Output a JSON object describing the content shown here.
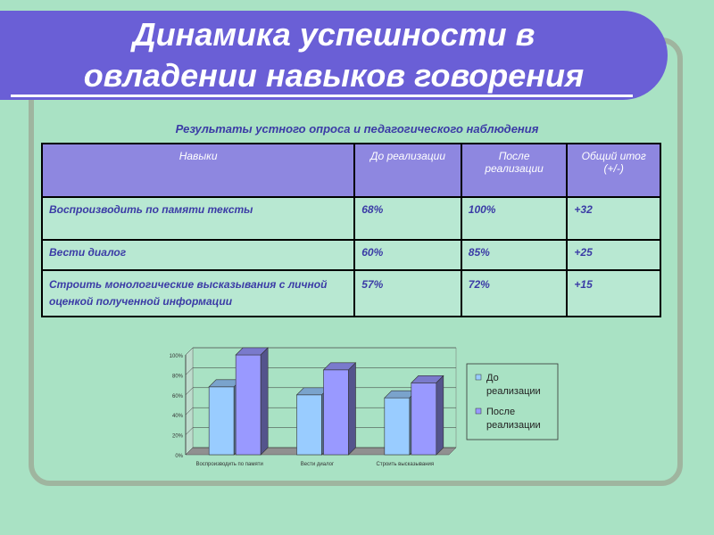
{
  "title": {
    "line1": "Динамика успешности в",
    "line2": "овладении навыков говорения"
  },
  "subtitle": "Результаты устного опроса и педагогического наблюдения",
  "table": {
    "headers": [
      "Навыки",
      "До реализации",
      "После реализации",
      "Общий итог (+/-)"
    ],
    "rows": [
      [
        "Воспроизводить по памяти тексты",
        "68%",
        "100%",
        "+32"
      ],
      [
        "Вести диалог",
        "60%",
        "85%",
        "+25"
      ],
      [
        "Строить монологические высказывания с личной оценкой полученной информации",
        "57%",
        "72%",
        "+15"
      ]
    ]
  },
  "chart_data": {
    "type": "bar",
    "categories": [
      "Воспроизводить по памяти",
      "Вести диалог",
      "Строить высказывания"
    ],
    "series": [
      {
        "name": "До реализации",
        "values": [
          68,
          60,
          57
        ],
        "color": "#99ccff"
      },
      {
        "name": "После реализации",
        "values": [
          100,
          85,
          72
        ],
        "color": "#9999ff"
      }
    ],
    "y_ticks": [
      "0%",
      "20%",
      "40%",
      "60%",
      "80%",
      "100%"
    ],
    "ylim": [
      0,
      100
    ],
    "legend": {
      "position": "right",
      "entries": [
        {
          "line1": "До",
          "line2": "реализации"
        },
        {
          "line1": "После",
          "line2": "реализации"
        }
      ]
    },
    "grid": true,
    "style": "3d-column"
  },
  "colors": {
    "background": "#a9e2c4",
    "title_band": "#6a5fd6",
    "header_cell": "#8e87e0",
    "text_blue": "#3b3ba6"
  }
}
